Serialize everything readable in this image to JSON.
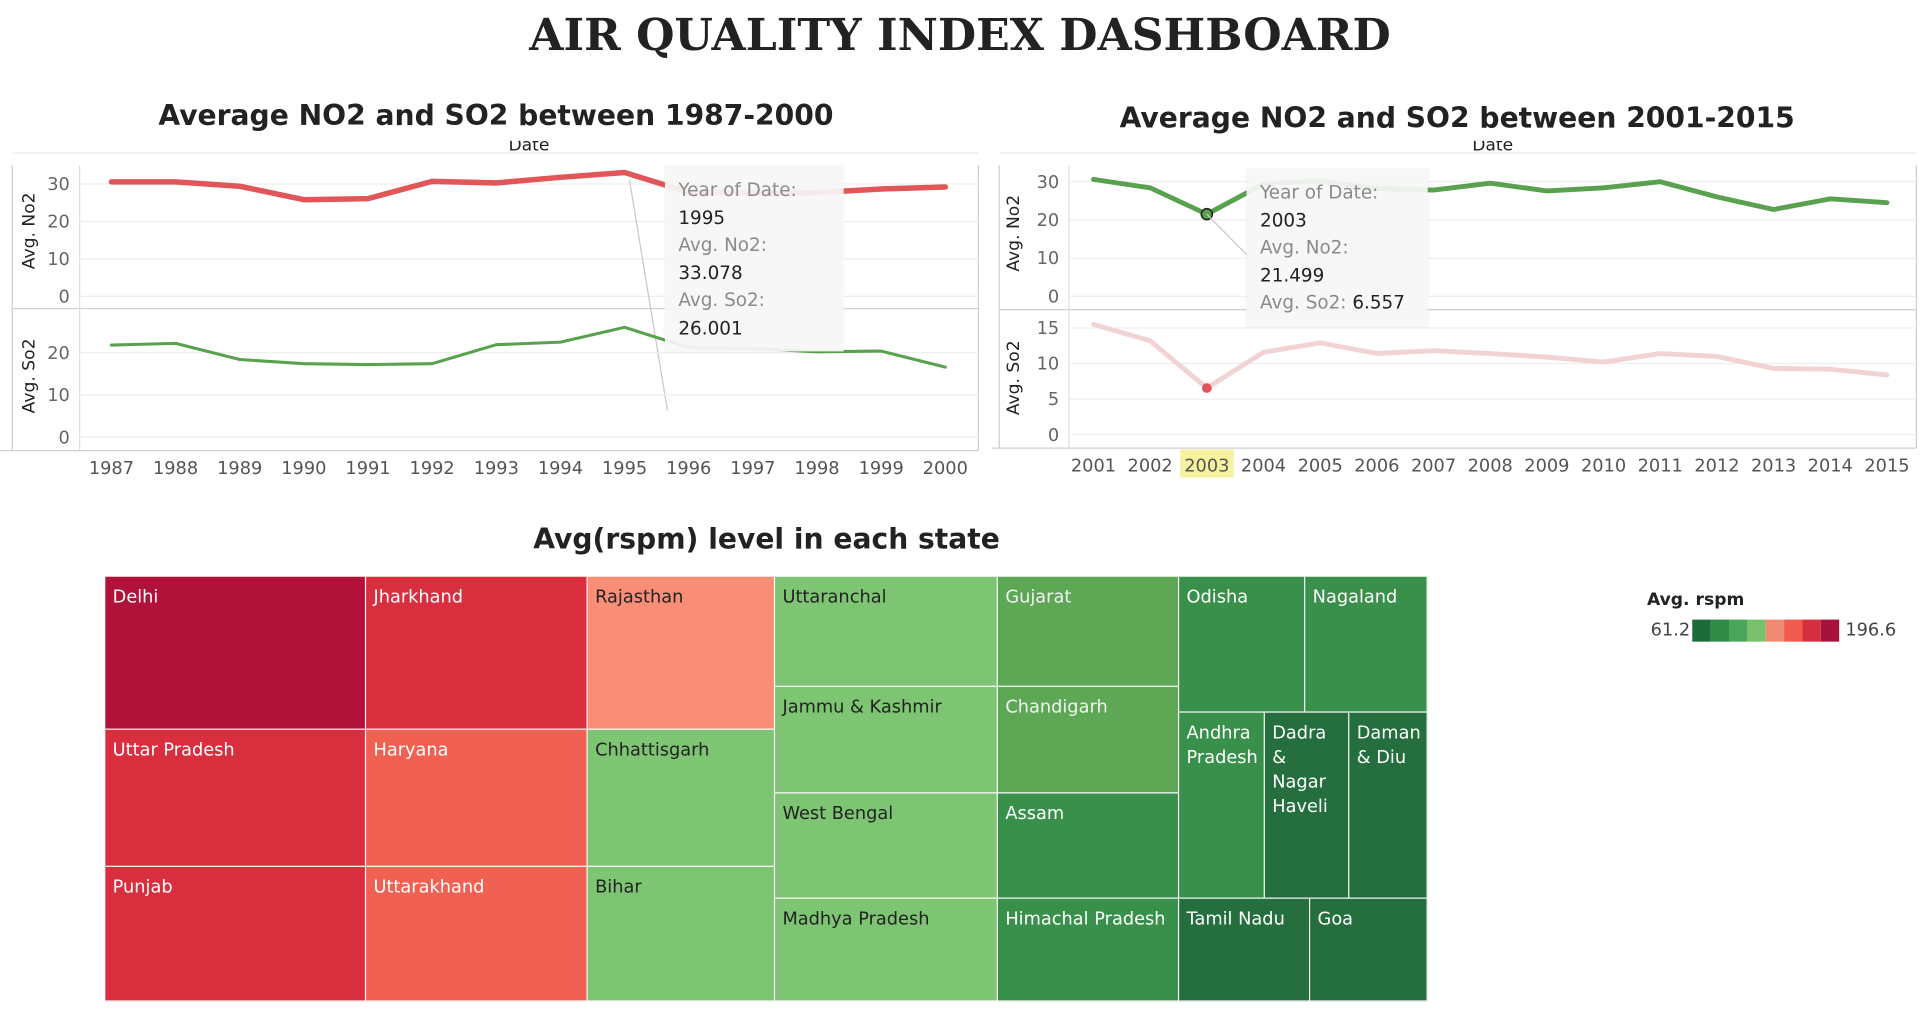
{
  "dashboard_title": "AIR QUALITY INDEX DASHBOARD",
  "colors": {
    "no2_red": "#e15759",
    "so2_green": "#59a14f",
    "so2_faded": "#f2d3d3",
    "year_highlight": "#f7f2a0"
  },
  "chart_data": [
    {
      "type": "line",
      "title": "Average NO2 and SO2 between 1987-2000",
      "xlabel": "Date",
      "x": [
        "1987",
        "1988",
        "1989",
        "1990",
        "1991",
        "1992",
        "1993",
        "1994",
        "1995",
        "1996",
        "1997",
        "1998",
        "1999",
        "2000"
      ],
      "panels": [
        {
          "ylabel": "Avg. No2",
          "ylim": [
            0,
            35
          ],
          "ticks": [
            0,
            10,
            20,
            30
          ],
          "values": [
            30.6,
            30.6,
            29.4,
            25.8,
            26.1,
            30.7,
            30.3,
            31.8,
            33.078,
            27.8,
            27.6,
            27.7,
            28.7,
            29.2
          ]
        },
        {
          "ylabel": "Avg. So2",
          "ylim": [
            0,
            29
          ],
          "ticks": [
            0,
            10,
            20
          ],
          "values": [
            21.8,
            22.2,
            18.4,
            17.4,
            17.2,
            17.4,
            21.9,
            22.5,
            26.001,
            21.2,
            21.0,
            20.2,
            20.4,
            16.6
          ]
        }
      ],
      "tooltip": {
        "k1": "Year of Date:",
        "v1": "1995",
        "k2": "Avg. No2:",
        "v2": "33.078",
        "k3": "Avg. So2:",
        "v3": "26.001"
      }
    },
    {
      "type": "line",
      "title": "Average NO2 and SO2 between 2001-2015",
      "xlabel": "Date",
      "x": [
        "2001",
        "2002",
        "2003",
        "2004",
        "2005",
        "2006",
        "2007",
        "2008",
        "2009",
        "2010",
        "2011",
        "2012",
        "2013",
        "2014",
        "2015"
      ],
      "highlight": "2003",
      "panels": [
        {
          "ylabel": "Avg. No2",
          "ylim": [
            0,
            33
          ],
          "ticks": [
            0,
            10,
            20,
            30
          ],
          "values": [
            30.6,
            28.4,
            21.499,
            29.4,
            30.2,
            28.2,
            27.8,
            29.6,
            27.6,
            28.4,
            30.0,
            26.0,
            22.7,
            25.5,
            24.5
          ]
        },
        {
          "ylabel": "Avg. So2",
          "ylim": [
            0,
            16
          ],
          "ticks": [
            0,
            5,
            10,
            15
          ],
          "values": [
            15.5,
            13.2,
            6.557,
            11.6,
            12.9,
            11.4,
            11.8,
            11.4,
            10.9,
            10.2,
            11.4,
            11.0,
            9.3,
            9.2,
            8.4
          ]
        }
      ],
      "tooltip": {
        "k1": "Year of Date:",
        "v1": "2003",
        "k2": "Avg. No2:",
        "v2": "21.499",
        "k3": "Avg. So2:",
        "v3": "6.557"
      }
    },
    {
      "type": "heatmap",
      "subtype": "treemap",
      "title": "Avg(rspm) level in each state",
      "legend": {
        "title": "Avg. rspm",
        "min": "61.2",
        "max": "196.6",
        "swatches": [
          "#1e6b3a",
          "#2f8a46",
          "#4aa45a",
          "#78c06c",
          "#f08a72",
          "#ef5c4e",
          "#d42f3e",
          "#a6123c"
        ]
      },
      "states": [
        {
          "name": "Delhi",
          "rank": "top-red",
          "color": "#b01239"
        },
        {
          "name": "Uttar Pradesh",
          "color": "#d92e3e"
        },
        {
          "name": "Punjab",
          "color": "#d92e3e"
        },
        {
          "name": "Jharkhand",
          "color": "#d92e3e"
        },
        {
          "name": "Haryana",
          "color": "#f06151"
        },
        {
          "name": "Uttarakhand",
          "color": "#f06151"
        },
        {
          "name": "Rajasthan",
          "color": "#f98e77"
        },
        {
          "name": "Chhattisgarh",
          "color": "#7dc572"
        },
        {
          "name": "Bihar",
          "color": "#7dc572"
        },
        {
          "name": "Uttaranchal",
          "color": "#7dc572"
        },
        {
          "name": "Jammu & Kashmir",
          "color": "#7dc572"
        },
        {
          "name": "West Bengal",
          "color": "#7dc572"
        },
        {
          "name": "Madhya Pradesh",
          "color": "#7dc572"
        },
        {
          "name": "Gujarat",
          "color": "#5ea855"
        },
        {
          "name": "Chandigarh",
          "color": "#5ea855"
        },
        {
          "name": "Assam",
          "color": "#39904b"
        },
        {
          "name": "Himachal Pradesh",
          "color": "#39904b"
        },
        {
          "name": "Odisha",
          "color": "#39904b"
        },
        {
          "name": "Nagaland",
          "color": "#39904b"
        },
        {
          "name": "Andhra Pradesh",
          "color": "#39904b"
        },
        {
          "name": "Dadra & Nagar Haveli",
          "color": "#246f3d"
        },
        {
          "name": "Daman & Diu",
          "color": "#246f3d"
        },
        {
          "name": "Tamil Nadu",
          "color": "#246f3d"
        },
        {
          "name": "Goa",
          "color": "#246f3d"
        }
      ]
    }
  ]
}
